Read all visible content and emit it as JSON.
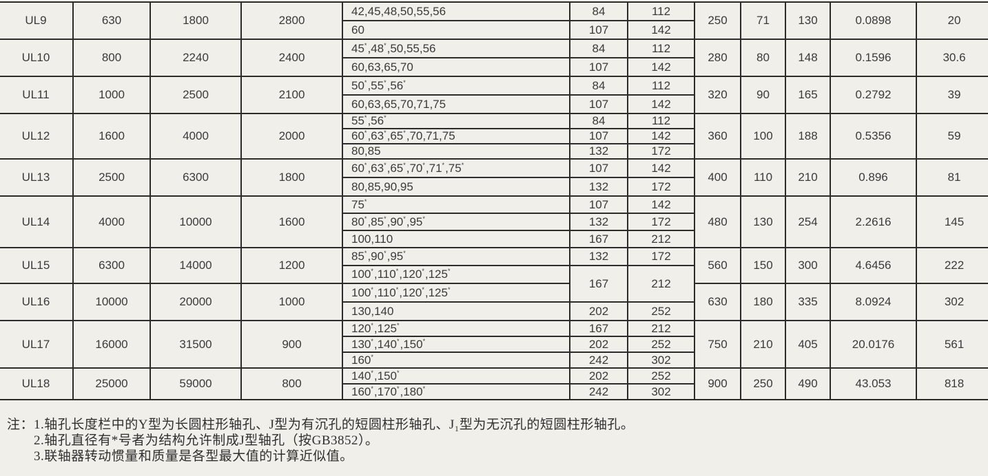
{
  "page": {
    "background_color": "#f1efe9",
    "grid_line_color": "#2b2b2b",
    "text_color": "#3a3a3a"
  },
  "table": {
    "blocks": [
      {
        "model": "UL9",
        "c2": "630",
        "c3": "1800",
        "c4": "2800",
        "subs": [
          {
            "d": "42,45,48,50,55,56",
            "l1": "84",
            "l2": "112"
          },
          {
            "d": "60",
            "l1": "107",
            "l2": "142"
          }
        ],
        "r1": "250",
        "r2": "71",
        "r3": "130",
        "r4": "0.0898",
        "r5": "20"
      },
      {
        "model": "UL10",
        "c2": "800",
        "c3": "2240",
        "c4": "2400",
        "subs": [
          {
            "d": "45*,48*,50,55,56",
            "l1": "84",
            "l2": "112"
          },
          {
            "d": "60,63,65,70",
            "l1": "107",
            "l2": "142"
          }
        ],
        "r1": "280",
        "r2": "80",
        "r3": "148",
        "r4": "0.1596",
        "r5": "30.6"
      },
      {
        "model": "UL11",
        "c2": "1000",
        "c3": "2500",
        "c4": "2100",
        "subs": [
          {
            "d": "50*,55*,56*",
            "l1": "84",
            "l2": "112"
          },
          {
            "d": "60,63,65,70,71,75",
            "l1": "107",
            "l2": "142"
          }
        ],
        "r1": "320",
        "r2": "90",
        "r3": "165",
        "r4": "0.2792",
        "r5": "39"
      },
      {
        "model": "UL12",
        "c2": "1600",
        "c3": "4000",
        "c4": "2000",
        "subs": [
          {
            "d": "55*,56*",
            "l1": "84",
            "l2": "112"
          },
          {
            "d": "60*,63*,65*,70,71,75",
            "l1": "107",
            "l2": "142"
          },
          {
            "d": "80,85",
            "l1": "132",
            "l2": "172"
          }
        ],
        "r1": "360",
        "r2": "100",
        "r3": "188",
        "r4": "0.5356",
        "r5": "59"
      },
      {
        "model": "UL13",
        "c2": "2500",
        "c3": "6300",
        "c4": "1800",
        "subs": [
          {
            "d": "60*,63*,65*,70*,71*,75*",
            "l1": "107",
            "l2": "142"
          },
          {
            "d": "80,85,90,95",
            "l1": "132",
            "l2": "172"
          }
        ],
        "r1": "400",
        "r2": "110",
        "r3": "210",
        "r4": "0.896",
        "r5": "81"
      },
      {
        "model": "UL14",
        "c2": "4000",
        "c3": "10000",
        "c4": "1600",
        "subs": [
          {
            "d": "75*",
            "l1": "107",
            "l2": "142"
          },
          {
            "d": "80*,85*,90*,95*",
            "l1": "132",
            "l2": "172"
          },
          {
            "d": "100,110",
            "l1": "167",
            "l2": "212"
          }
        ],
        "r1": "480",
        "r2": "130",
        "r3": "254",
        "r4": "2.2616",
        "r5": "145"
      },
      {
        "model": "UL15",
        "c2": "6300",
        "c3": "14000",
        "c4": "1200",
        "subs": [
          {
            "d": "85*,90*,95*",
            "l1": "132",
            "l2": "172"
          },
          {
            "d": "100*,110*,120*,125*",
            "l1": "167",
            "l2": "212"
          }
        ],
        "r1": "560",
        "r2": "150",
        "r3": "300",
        "r4": "4.6456",
        "r5": "222"
      },
      {
        "model": "UL16",
        "c2": "10000",
        "c3": "20000",
        "c4": "1000",
        "subs": [
          {
            "d": "100*,110*,120*,125*"
          },
          {
            "d": "130,140",
            "l1": "202",
            "l2": "252"
          }
        ],
        "r1": "630",
        "r2": "180",
        "r3": "335",
        "r4": "8.0924",
        "r5": "302"
      },
      {
        "model": "UL17",
        "c2": "16000",
        "c3": "31500",
        "c4": "900",
        "subs": [
          {
            "d": "120*,125*",
            "l1": "167",
            "l2": "212"
          },
          {
            "d": "130*,140*,150*",
            "l1": "202",
            "l2": "252"
          },
          {
            "d": "160*",
            "l1": "242",
            "l2": "302"
          }
        ],
        "r1": "750",
        "r2": "210",
        "r3": "405",
        "r4": "20.0176",
        "r5": "561"
      },
      {
        "model": "UL18",
        "c2": "25000",
        "c3": "59000",
        "c4": "800",
        "subs": [
          {
            "d": "140*,150*",
            "l1": "202",
            "l2": "252"
          },
          {
            "d": "160*,170*,180*",
            "l1": "242",
            "l2": "302"
          }
        ],
        "r1": "900",
        "r2": "250",
        "r3": "490",
        "r4": "43.053",
        "r5": "818"
      }
    ]
  },
  "notes": {
    "label": "注：",
    "items": [
      "1.轴孔长度栏中的Y型为长圆柱形轴孔、J型为有沉孔的短圆柱形轴孔、J₁型为无沉孔的短圆柱形轴孔。",
      "2.轴孔直径有*号者为结构允许制成J型轴孔（按GB3852）。",
      "3.联轴器转动惯量和质量是各型最大值的计算近似值。"
    ]
  }
}
